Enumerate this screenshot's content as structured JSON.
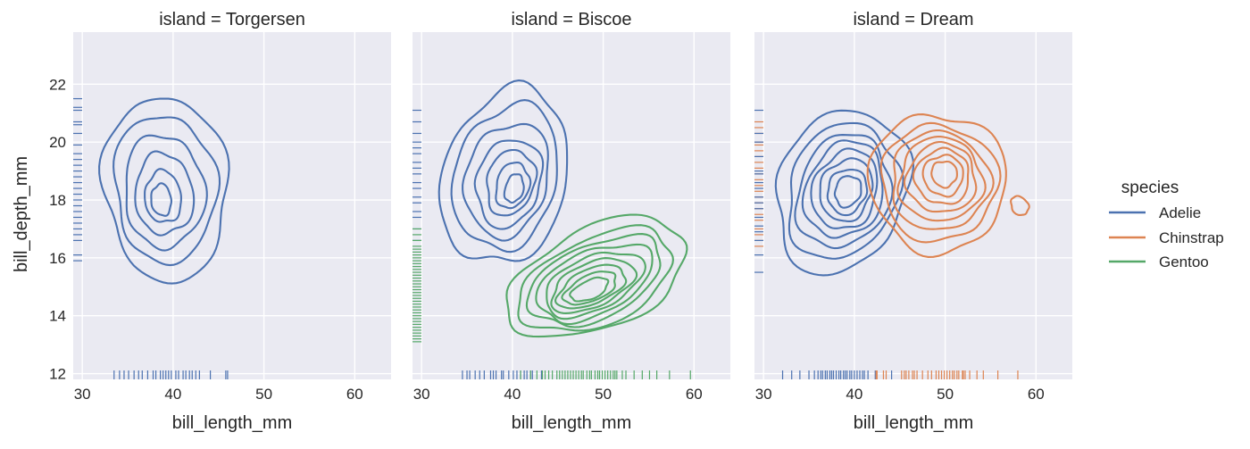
{
  "chart_data": {
    "type": "kde-contour-facet",
    "x_label": "bill_length_mm",
    "y_label": "bill_depth_mm",
    "xlim": [
      29,
      64
    ],
    "ylim": [
      11.8,
      23.8
    ],
    "x_ticks": [
      30,
      40,
      50,
      60
    ],
    "y_ticks": [
      12,
      14,
      16,
      18,
      20,
      22
    ],
    "legend_title": "species",
    "legend_placement": "right",
    "grid": true,
    "species": [
      {
        "name": "Adelie",
        "color": "#4c72b0"
      },
      {
        "name": "Chinstrap",
        "color": "#dd8452"
      },
      {
        "name": "Gentoo",
        "color": "#55a868"
      }
    ],
    "panels": [
      {
        "title": "island = Torgersen",
        "groups": [
          {
            "species": "Adelie",
            "color": "#4c72b0",
            "center": [
              39.0,
              18.2
            ],
            "contours": [
              {
                "rx": 6.8,
                "ry": 3.2,
                "angle": 5,
                "dx": 0.2,
                "dy": 0.2
              },
              {
                "rx": 5.6,
                "ry": 2.55,
                "angle": 5,
                "dx": 0.1,
                "dy": 0.2
              },
              {
                "rx": 4.4,
                "ry": 1.95,
                "angle": 5,
                "dx": 0.0,
                "dy": 0.1
              },
              {
                "rx": 3.2,
                "ry": 1.4,
                "angle": 5,
                "dx": 0.0,
                "dy": 0.0
              },
              {
                "rx": 2.0,
                "ry": 0.9,
                "angle": 5,
                "dx": -0.1,
                "dy": -0.1
              },
              {
                "rx": 1.1,
                "ry": 0.55,
                "angle": 5,
                "dx": -0.3,
                "dy": -0.2
              }
            ]
          }
        ],
        "rug_x": [
          {
            "species": "Adelie",
            "color": "#4c72b0",
            "values": [
              33.5,
              34.1,
              34.6,
              35.1,
              35.7,
              36.2,
              36.6,
              37.2,
              37.8,
              38.1,
              38.6,
              38.9,
              39.2,
              39.5,
              39.8,
              40.3,
              40.6,
              41.1,
              41.4,
              41.8,
              42.1,
              42.5,
              42.9,
              44.1,
              45.8,
              46.0
            ]
          }
        ],
        "rug_y": [
          {
            "species": "Adelie",
            "color": "#4c72b0",
            "values": [
              15.9,
              16.1,
              16.6,
              16.8,
              17.0,
              17.2,
              17.4,
              17.6,
              17.8,
              18.0,
              18.2,
              18.4,
              18.6,
              18.8,
              19.0,
              19.2,
              19.4,
              19.6,
              19.9,
              20.3,
              20.6,
              20.7,
              21.1,
              21.2,
              21.5
            ]
          }
        ]
      },
      {
        "title": "island = Biscoe",
        "groups": [
          {
            "species": "Adelie",
            "color": "#4c72b0",
            "center": [
              39.4,
              18.7
            ],
            "contours": [
              {
                "rx": 6.8,
                "ry": 3.1,
                "angle": -15,
                "dx": -0.2,
                "dy": 0.1
              },
              {
                "rx": 5.6,
                "ry": 2.55,
                "angle": -15,
                "dx": -0.1,
                "dy": 0.1
              },
              {
                "rx": 4.5,
                "ry": 2.0,
                "angle": -15,
                "dx": 0.0,
                "dy": 0.0
              },
              {
                "rx": 3.5,
                "ry": 1.55,
                "angle": -15,
                "dx": 0.2,
                "dy": -0.1
              },
              {
                "rx": 2.6,
                "ry": 1.15,
                "angle": -15,
                "dx": 0.4,
                "dy": -0.1
              },
              {
                "rx": 1.8,
                "ry": 0.8,
                "angle": -15,
                "dx": 0.6,
                "dy": -0.2
              },
              {
                "rx": 1.0,
                "ry": 0.5,
                "angle": -15,
                "dx": 0.8,
                "dy": -0.3
              }
            ]
          },
          {
            "species": "Gentoo",
            "color": "#55a868",
            "center": [
              49.0,
              15.2
            ],
            "contours": [
              {
                "rx": 10.5,
                "ry": 1.75,
                "angle": 24,
                "dx": 0.3,
                "dy": 0.1
              },
              {
                "rx": 9.0,
                "ry": 1.5,
                "angle": 24,
                "dx": 0.2,
                "dy": 0.0
              },
              {
                "rx": 7.8,
                "ry": 1.28,
                "angle": 24,
                "dx": 0.1,
                "dy": 0.0
              },
              {
                "rx": 6.8,
                "ry": 1.1,
                "angle": 24,
                "dx": 0.0,
                "dy": -0.05
              },
              {
                "rx": 5.8,
                "ry": 0.92,
                "angle": 24,
                "dx": -0.1,
                "dy": -0.1
              },
              {
                "rx": 4.9,
                "ry": 0.76,
                "angle": 24,
                "dx": -0.2,
                "dy": -0.15
              },
              {
                "rx": 4.0,
                "ry": 0.6,
                "angle": 24,
                "dx": -0.3,
                "dy": -0.2
              },
              {
                "rx": 3.1,
                "ry": 0.45,
                "angle": 24,
                "dx": -0.4,
                "dy": -0.25
              },
              {
                "rx": 2.2,
                "ry": 0.32,
                "angle": 24,
                "dx": -0.5,
                "dy": -0.3
              }
            ]
          }
        ],
        "rug_x": [
          {
            "species": "Adelie",
            "color": "#4c72b0",
            "values": [
              34.5,
              35.0,
              35.3,
              35.9,
              36.4,
              36.9,
              37.6,
              37.9,
              38.2,
              38.8,
              39.0,
              39.6,
              40.1,
              40.5,
              40.9,
              41.3,
              41.6,
              42.0,
              42.2,
              43.2
            ]
          },
          {
            "species": "Gentoo",
            "color": "#55a868",
            "values": [
              40.9,
              42.0,
              42.7,
              43.3,
              43.6,
              44.0,
              44.4,
              44.9,
              45.2,
              45.5,
              45.8,
              46.1,
              46.4,
              46.7,
              47.0,
              47.3,
              47.6,
              47.8,
              48.2,
              48.5,
              48.7,
              49.1,
              49.4,
              49.6,
              49.9,
              50.2,
              50.5,
              50.8,
              51.1,
              51.3,
              51.5,
              52.1,
              52.5,
              53.4,
              54.3,
              55.1,
              55.9,
              57.3,
              59.6
            ]
          }
        ],
        "rug_y": [
          {
            "species": "Adelie",
            "color": "#4c72b0",
            "values": [
              16.6,
              17.0,
              17.4,
              17.6,
              17.9,
              18.1,
              18.4,
              18.6,
              18.9,
              19.1,
              19.3,
              19.6,
              19.8,
              20.0,
              20.3,
              20.7,
              21.1
            ]
          },
          {
            "species": "Gentoo",
            "color": "#55a868",
            "values": [
              13.1,
              13.2,
              13.3,
              13.4,
              13.5,
              13.6,
              13.7,
              13.8,
              13.9,
              14.0,
              14.1,
              14.2,
              14.3,
              14.4,
              14.5,
              14.6,
              14.7,
              14.8,
              14.9,
              15.0,
              15.1,
              15.2,
              15.3,
              15.4,
              15.5,
              15.6,
              15.7,
              15.8,
              15.9,
              16.0,
              16.1,
              16.2,
              16.3,
              16.4,
              16.6,
              16.8,
              17.0
            ]
          }
        ]
      },
      {
        "title": "island = Dream",
        "groups": [
          {
            "species": "Adelie",
            "color": "#4c72b0",
            "center": [
              38.8,
              18.3
            ],
            "contours": [
              {
                "rx": 7.0,
                "ry": 2.9,
                "angle": -20,
                "dx": -0.2,
                "dy": 0.0
              },
              {
                "rx": 5.9,
                "ry": 2.4,
                "angle": -20,
                "dx": -0.1,
                "dy": 0.0
              },
              {
                "rx": 5.0,
                "ry": 2.0,
                "angle": -20,
                "dx": 0.0,
                "dy": 0.0
              },
              {
                "rx": 4.2,
                "ry": 1.7,
                "angle": -20,
                "dx": 0.1,
                "dy": 0.05
              },
              {
                "rx": 3.5,
                "ry": 1.4,
                "angle": -20,
                "dx": 0.2,
                "dy": 0.05
              },
              {
                "rx": 2.8,
                "ry": 1.1,
                "angle": -20,
                "dx": 0.3,
                "dy": 0.05
              },
              {
                "rx": 2.1,
                "ry": 0.8,
                "angle": -20,
                "dx": 0.4,
                "dy": 0.0
              },
              {
                "rx": 1.4,
                "ry": 0.55,
                "angle": -20,
                "dx": 0.5,
                "dy": 0.0
              }
            ]
          },
          {
            "species": "Chinstrap",
            "color": "#dd8452",
            "center": [
              49.0,
              18.5
            ],
            "contours": [
              {
                "rx": 7.5,
                "ry": 2.4,
                "angle": 30,
                "dx": 0.2,
                "dy": 0.1
              },
              {
                "rx": 6.4,
                "ry": 2.0,
                "angle": 30,
                "dx": 0.3,
                "dy": 0.1
              },
              {
                "rx": 5.4,
                "ry": 1.7,
                "angle": 30,
                "dx": 0.4,
                "dy": 0.15
              },
              {
                "rx": 4.6,
                "ry": 1.45,
                "angle": 30,
                "dx": 0.5,
                "dy": 0.2
              },
              {
                "rx": 3.8,
                "ry": 1.2,
                "angle": 30,
                "dx": 0.6,
                "dy": 0.25
              },
              {
                "rx": 3.0,
                "ry": 0.95,
                "angle": 30,
                "dx": 0.7,
                "dy": 0.3
              },
              {
                "rx": 2.2,
                "ry": 0.7,
                "angle": 30,
                "dx": 0.8,
                "dy": 0.35
              },
              {
                "rx": 1.4,
                "ry": 0.45,
                "angle": 30,
                "dx": 0.9,
                "dy": 0.4
              }
            ]
          },
          {
            "species": "Chinstrap",
            "color": "#dd8452",
            "center": [
              58.2,
              17.8
            ],
            "contours": [
              {
                "rx": 0.9,
                "ry": 0.35,
                "angle": 35,
                "dx": 0.0,
                "dy": 0.0
              }
            ]
          }
        ],
        "rug_x": [
          {
            "species": "Adelie",
            "color": "#4c72b0",
            "values": [
              32.1,
              33.1,
              34.0,
              35.0,
              35.6,
              36.0,
              36.3,
              36.5,
              36.8,
              37.0,
              37.3,
              37.5,
              37.7,
              38.0,
              38.3,
              38.5,
              38.8,
              39.0,
              39.2,
              39.5,
              39.7,
              40.0,
              40.3,
              40.6,
              40.9,
              41.1,
              41.5,
              42.3,
              44.1
            ]
          },
          {
            "species": "Chinstrap",
            "color": "#dd8452",
            "values": [
              42.4,
              42.5,
              43.2,
              43.5,
              45.2,
              45.5,
              45.7,
              46.0,
              46.4,
              46.6,
              46.9,
              47.5,
              48.1,
              48.5,
              49.0,
              49.3,
              49.6,
              49.9,
              50.2,
              50.5,
              50.8,
              51.0,
              51.3,
              51.5,
              51.9,
              52.0,
              52.2,
              52.7,
              53.5,
              54.2,
              55.8,
              58.0
            ]
          }
        ],
        "rug_y": [
          {
            "species": "Chinstrap",
            "color": "#dd8452",
            "values": [
              16.4,
              16.6,
              16.8,
              17.0,
              17.3,
              17.5,
              17.7,
              17.9,
              18.1,
              18.3,
              18.5,
              18.7,
              18.9,
              19.1,
              19.3,
              19.5,
              19.7,
              19.9,
              20.0,
              20.3,
              20.5,
              20.7
            ]
          },
          {
            "species": "Adelie",
            "color": "#4c72b0",
            "values": [
              15.5,
              16.1,
              16.6,
              16.9,
              17.1,
              17.4,
              17.7,
              17.9,
              18.1,
              18.4,
              18.6,
              18.9,
              19.0,
              19.5,
              20.0,
              20.3,
              21.1
            ]
          }
        ]
      }
    ]
  }
}
